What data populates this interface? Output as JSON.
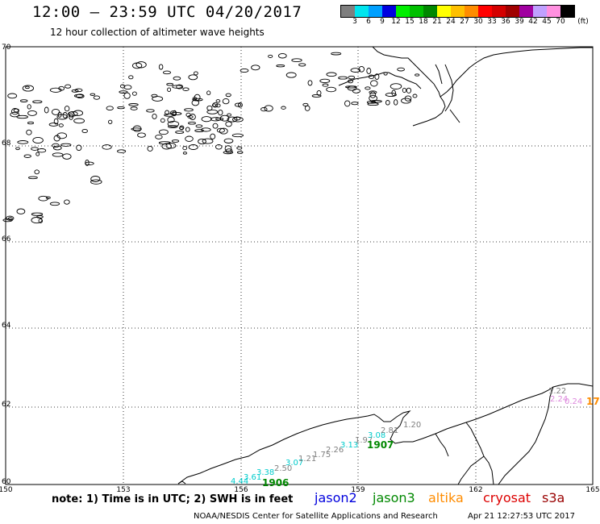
{
  "header": {
    "title": "12:00 – 23:59 UTC 04/20/2017",
    "subtitle": "12 hour collection of altimeter wave heights"
  },
  "colorbar": {
    "unit": "(ft)",
    "labels": [
      "3",
      "6",
      "9",
      "12",
      "15",
      "18",
      "21",
      "24",
      "27",
      "30",
      "33",
      "36",
      "39",
      "42",
      "45",
      "70"
    ],
    "colors": [
      "#7f7f7f",
      "#00e5ee",
      "#00a0ff",
      "#0000e0",
      "#00ee00",
      "#00c000",
      "#008800",
      "#ffff00",
      "#ffc000",
      "#ff8c00",
      "#ff0000",
      "#d40000",
      "#a00000",
      "#a000a0",
      "#c0a0ff",
      "#ff90e0",
      "#000000"
    ]
  },
  "map": {
    "lat_labels": [
      "70",
      "68",
      "66",
      "64",
      "62",
      "60"
    ],
    "lon_labels": [
      "150",
      "153",
      "156",
      "159",
      "162",
      "165"
    ],
    "swh_labels": [
      {
        "text": "4.44",
        "color": "#00cccc"
      },
      {
        "text": "3.61",
        "color": "#00cccc"
      },
      {
        "text": "3.38",
        "color": "#00cccc"
      },
      {
        "text": "2.50",
        "color": "#7f7f7f"
      },
      {
        "text": "3.07",
        "color": "#00cccc"
      },
      {
        "text": "1.21",
        "color": "#7f7f7f"
      },
      {
        "text": "1.75",
        "color": "#7f7f7f"
      },
      {
        "text": "2.26",
        "color": "#7f7f7f"
      },
      {
        "text": "3.13",
        "color": "#00cccc"
      },
      {
        "text": "1.97",
        "color": "#7f7f7f"
      },
      {
        "text": "3.08",
        "color": "#00cccc"
      },
      {
        "text": "2.81",
        "color": "#7f7f7f"
      },
      {
        "text": "1.20",
        "color": "#7f7f7f"
      },
      {
        "text": "1.22",
        "color": "#7f7f7f"
      },
      {
        "text": "2.24",
        "color": "#dd88dd"
      },
      {
        "text": "0.24",
        "color": "#dd88dd"
      }
    ],
    "pass_labels": [
      {
        "text": "1906",
        "color": "#008800"
      },
      {
        "text": "1907",
        "color": "#008800"
      },
      {
        "text": "17",
        "color": "#ff8c00"
      }
    ]
  },
  "footer": {
    "note": "note: 1) Time is in UTC; 2) SWH is in feet",
    "satellites": [
      {
        "name": "jason2",
        "color": "#0000dd"
      },
      {
        "name": "jason3",
        "color": "#008800"
      },
      {
        "name": "altika",
        "color": "#ff8c00"
      },
      {
        "name": "cryosat",
        "color": "#dd0000"
      },
      {
        "name": "s3a",
        "color": "#990000"
      }
    ],
    "credit": "NOAA/NESDIS Center for Satellite Applications and Research",
    "timestamp": "Apr 21 12:27:53 UTC 2017"
  }
}
